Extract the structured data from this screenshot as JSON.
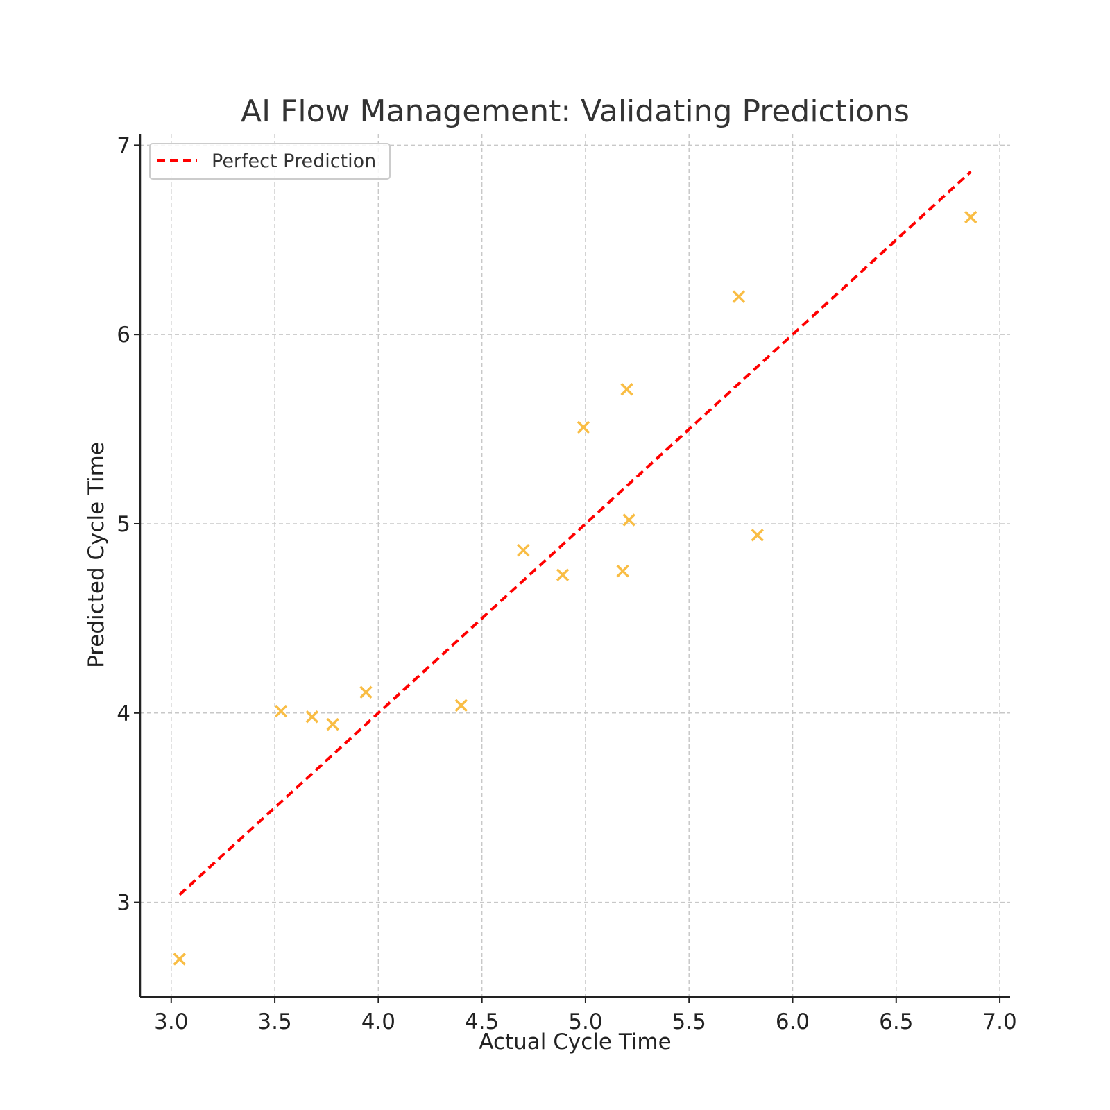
{
  "chart_data": {
    "type": "scatter",
    "title": "AI Flow Management: Validating Predictions",
    "xlabel": "Actual Cycle Time",
    "ylabel": "Predicted Cycle Time",
    "xlim": [
      2.85,
      7.05
    ],
    "ylim": [
      2.5,
      7.06
    ],
    "x_ticks": [
      3.0,
      3.5,
      4.0,
      4.5,
      5.0,
      5.5,
      6.0,
      6.5,
      7.0
    ],
    "x_tick_labels": [
      "3.0",
      "3.5",
      "4.0",
      "4.5",
      "5.0",
      "5.5",
      "6.0",
      "6.5",
      "7.0"
    ],
    "y_ticks": [
      3,
      4,
      5,
      6,
      7
    ],
    "y_tick_labels": [
      "3",
      "4",
      "5",
      "6",
      "7"
    ],
    "grid": true,
    "legend_position": "top-left",
    "series": [
      {
        "kind": "scatter",
        "marker": "x",
        "color": "#f9bd44",
        "points": [
          {
            "x": 3.04,
            "y": 2.7
          },
          {
            "x": 3.53,
            "y": 4.01
          },
          {
            "x": 3.68,
            "y": 3.98
          },
          {
            "x": 3.78,
            "y": 3.94
          },
          {
            "x": 3.94,
            "y": 4.11
          },
          {
            "x": 4.4,
            "y": 4.04
          },
          {
            "x": 4.7,
            "y": 4.86
          },
          {
            "x": 4.89,
            "y": 4.73
          },
          {
            "x": 4.99,
            "y": 5.51
          },
          {
            "x": 5.18,
            "y": 4.75
          },
          {
            "x": 5.2,
            "y": 5.71
          },
          {
            "x": 5.21,
            "y": 5.02
          },
          {
            "x": 5.74,
            "y": 6.2
          },
          {
            "x": 5.83,
            "y": 4.94
          },
          {
            "x": 6.86,
            "y": 6.62
          }
        ]
      },
      {
        "name": "Perfect Prediction",
        "kind": "line",
        "style": "dashed",
        "color": "#ff0000",
        "points": [
          {
            "x": 3.04,
            "y": 3.04
          },
          {
            "x": 6.86,
            "y": 6.86
          }
        ]
      }
    ]
  }
}
